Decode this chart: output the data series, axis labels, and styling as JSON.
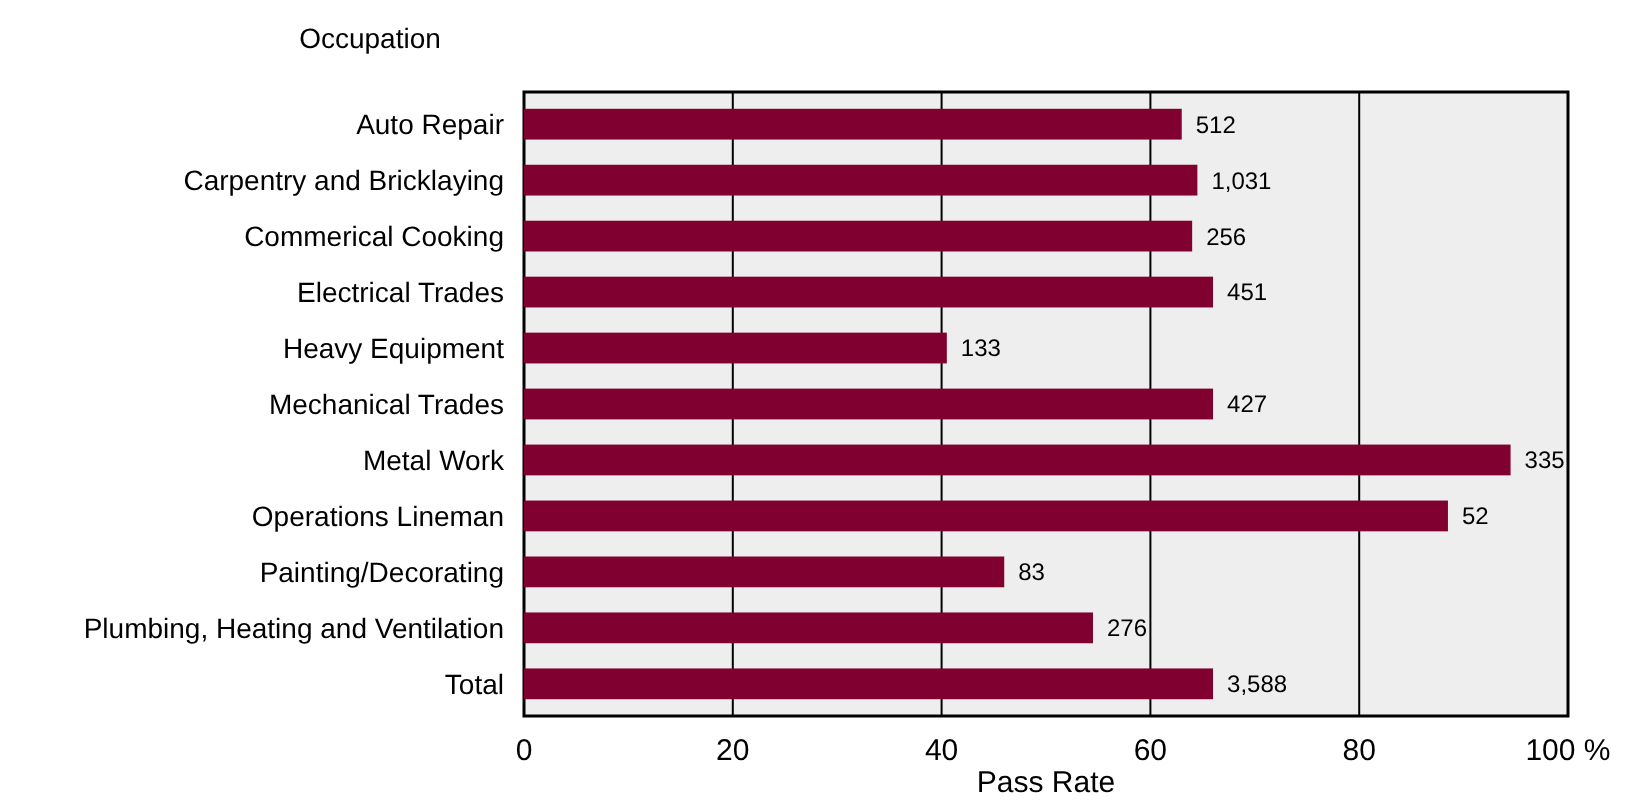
{
  "chart_data": {
    "type": "bar",
    "orientation": "horizontal",
    "ylabel": "Occupation",
    "xlabel": "Pass Rate",
    "categories": [
      "Auto Repair",
      "Carpentry and Bricklaying",
      "Commerical Cooking",
      "Electrical Trades",
      "Heavy Equipment",
      "Mechanical Trades",
      "Metal Work",
      "Operations Lineman",
      "Painting/Decorating",
      "Plumbing, Heating and Ventilation",
      "Total"
    ],
    "values": [
      63,
      64.5,
      64,
      66,
      40.5,
      66,
      94.5,
      88.5,
      46,
      54.5,
      66
    ],
    "annotations": [
      {
        "text": "512",
        "x": 63,
        "y": "Auto Repair"
      },
      {
        "text": "1,031",
        "x": 64.5,
        "y": "Carpentry and Bricklaying"
      },
      {
        "text": "256",
        "x": 64,
        "y": "Commerical Cooking"
      },
      {
        "text": "451",
        "x": 66,
        "y": "Electrical Trades"
      },
      {
        "text": "133",
        "x": 40.5,
        "y": "Heavy Equipment"
      },
      {
        "text": "427",
        "x": 66,
        "y": "Mechanical Trades"
      },
      {
        "text": "335",
        "x": 94.5,
        "y": "Metal Work"
      },
      {
        "text": "52",
        "x": 88.5,
        "y": "Operations Lineman"
      },
      {
        "text": "83",
        "x": 46,
        "y": "Painting/Decorating"
      },
      {
        "text": "276",
        "x": 54.5,
        "y": "Plumbing, Heating and Ventilation"
      },
      {
        "text": "3,588",
        "x": 66,
        "y": "Total"
      }
    ],
    "color": "#800030",
    "xlim": [
      0,
      100
    ],
    "xticks": [
      0,
      20,
      40,
      60,
      80,
      {
        "value": 100,
        "label": "100 %"
      }
    ],
    "grid": "x"
  }
}
